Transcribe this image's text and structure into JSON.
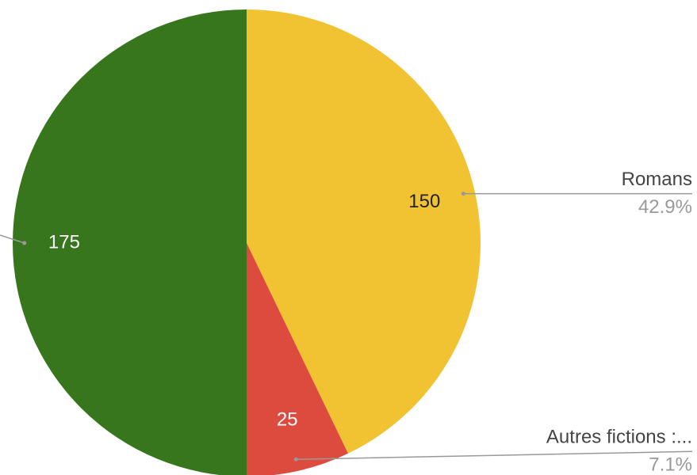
{
  "chart_data": {
    "type": "pie",
    "categories": [
      "Romans",
      "Autres fictions :...",
      null
    ],
    "values": [
      150,
      25,
      175
    ],
    "percent_labels": [
      "42.9%",
      "7.1%",
      null
    ],
    "colors": [
      "#f1c232",
      "#dd4b3e",
      "#38761d"
    ],
    "label_colors": [
      "#222222",
      "#ffffff",
      "#ffffff"
    ],
    "start_angle": 0,
    "direction": "clockwise"
  }
}
